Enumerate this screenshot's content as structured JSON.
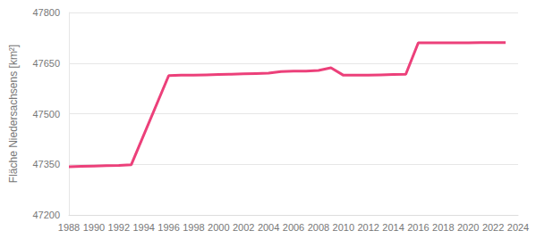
{
  "chart_data": {
    "type": "line",
    "y_label": "Fläche Niedersachsens [km²]",
    "x": [
      1988,
      1989,
      1990,
      1991,
      1992,
      1993,
      1996,
      1997,
      1998,
      1999,
      2000,
      2001,
      2002,
      2003,
      2004,
      2005,
      2006,
      2007,
      2008,
      2009,
      2010,
      2011,
      2012,
      2013,
      2014,
      2015,
      2016,
      2017,
      2018,
      2019,
      2020,
      2021,
      2022,
      2023
    ],
    "values": [
      47343,
      47344,
      47345,
      47346,
      47347,
      47349,
      47613,
      47614,
      47614,
      47615,
      47616,
      47617,
      47618,
      47619,
      47620,
      47625,
      47626,
      47626,
      47628,
      47636,
      47614,
      47614,
      47614,
      47615,
      47616,
      47617,
      47710,
      47710,
      47710,
      47710,
      47710,
      47711,
      47711,
      47711
    ],
    "color": "#ec407a",
    "xlim": [
      1988,
      2024
    ],
    "xticks": [
      1988,
      1990,
      1992,
      1994,
      1996,
      1998,
      2000,
      2002,
      2004,
      2006,
      2008,
      2010,
      2012,
      2014,
      2016,
      2018,
      2020,
      2022,
      2024
    ],
    "ylim": [
      47200,
      47800
    ],
    "yticks": [
      47200,
      47350,
      47500,
      47650,
      47800
    ],
    "grid": true
  }
}
